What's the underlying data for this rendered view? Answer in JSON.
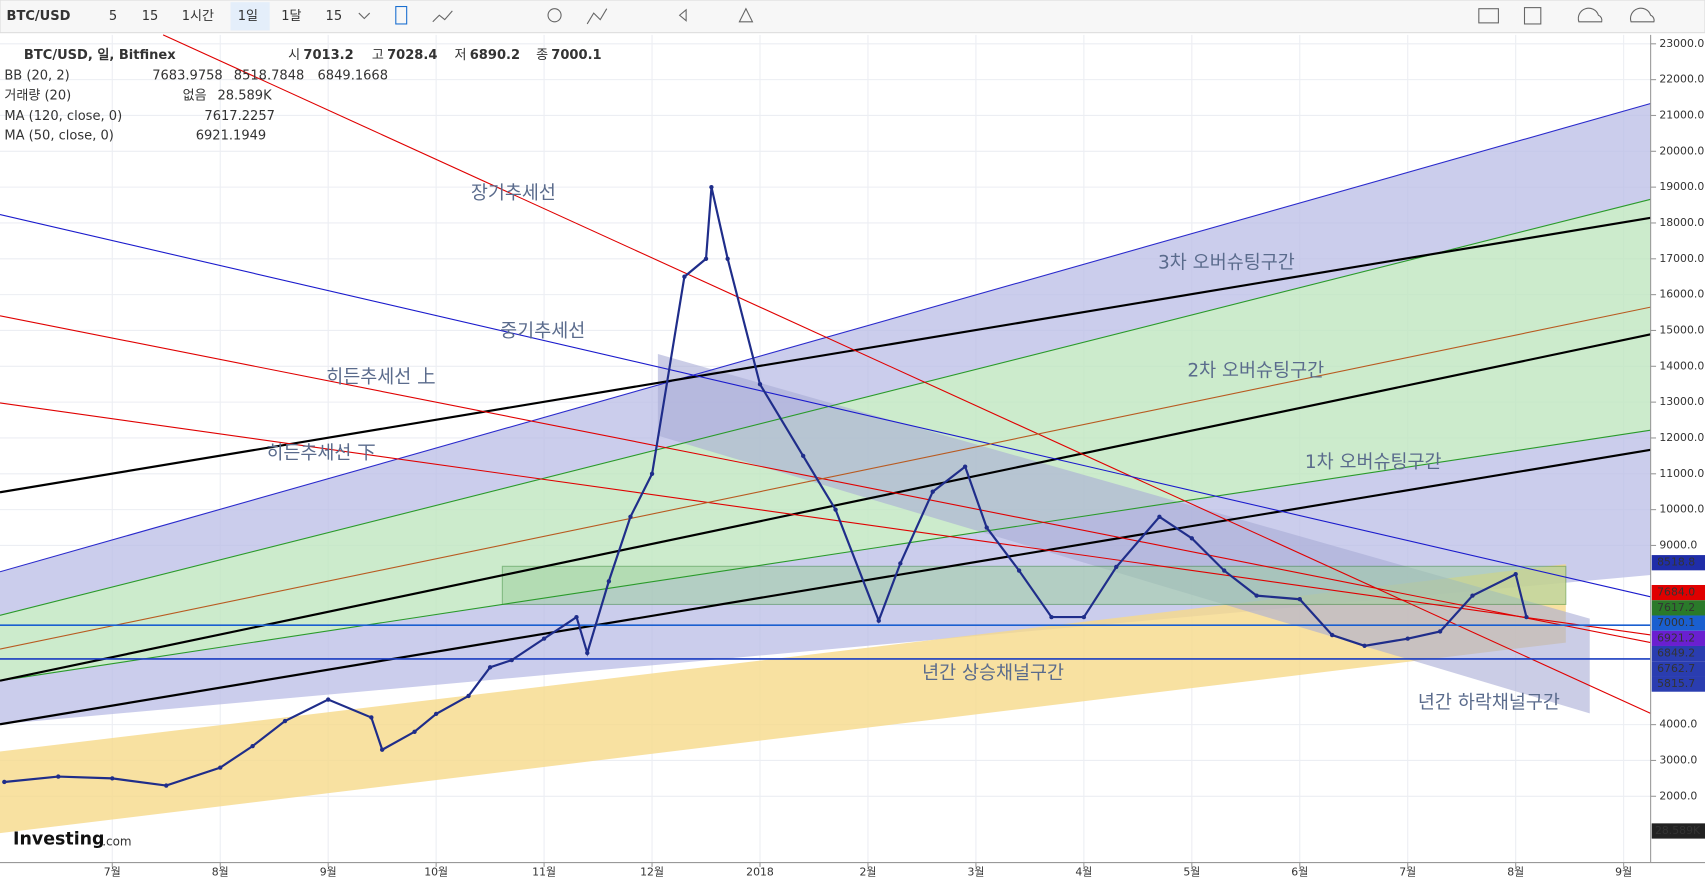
{
  "toolbar": {
    "symbol": "BTC/USD",
    "intervals": [
      "5",
      "15",
      "1시간",
      "1일",
      "1달",
      "15"
    ]
  },
  "legend": {
    "title": "BTC/USD, 일, Bitfinex",
    "ohlc": [
      {
        "label": "시",
        "value": "7013.2"
      },
      {
        "label": "고",
        "value": "7028.4"
      },
      {
        "label": "저",
        "value": "6890.2"
      },
      {
        "label": "종",
        "value": "7000.1"
      }
    ],
    "indicators": [
      {
        "name": "BB (20, 2)",
        "values": [
          {
            "text": "7683.9758",
            "color": "#e00000"
          },
          {
            "text": "8518.7848",
            "color": "#1a1acc"
          },
          {
            "text": "6849.1668",
            "color": "#1a1acc"
          }
        ]
      },
      {
        "name": "거래량 (20)",
        "values": [
          {
            "text": "없음",
            "color": "#1a1acc"
          },
          {
            "text": "28.589K",
            "color": "#222222"
          }
        ]
      },
      {
        "name": "MA (120, close, 0)",
        "values": [
          {
            "text": "7617.2257",
            "color": "#2a7a2a"
          }
        ]
      },
      {
        "name": "MA (50, close, 0)",
        "values": [
          {
            "text": "6921.1949",
            "color": "#6a1fd0"
          }
        ]
      }
    ]
  },
  "annotations": [
    "장기추세선",
    "중기추세선",
    "히든추세선 上",
    "히든추세선 下",
    "3차 오버슈팅구간",
    "2차 오버슈팅구간",
    "1차 오버슈팅구간",
    "년간 상승채널구간",
    "년간 하락채널구간"
  ],
  "logo": {
    "brand": "Investing",
    ".com": ".com"
  },
  "volume_badge": "28.589K",
  "chart_data": {
    "type": "line",
    "color": "#1f2d8a",
    "x": [
      5.0,
      5.5,
      6.0,
      6.5,
      7.0,
      7.3,
      7.6,
      8.0,
      8.4,
      8.5,
      8.8,
      9.0,
      9.3,
      9.5,
      9.7,
      10.0,
      10.3,
      10.4,
      10.6,
      10.8,
      11.0,
      11.3,
      11.5,
      11.55,
      11.7,
      12.0,
      12.4,
      12.7,
      13.1,
      13.3,
      13.6,
      13.9,
      14.1,
      14.4,
      14.7,
      15.0,
      15.3,
      15.7,
      16.0,
      16.3,
      16.6,
      17.0,
      17.3,
      17.6,
      18.0,
      18.3,
      18.6,
      19.0,
      19.1
    ],
    "values": [
      2400,
      2550,
      2500,
      2300,
      2800,
      3400,
      4100,
      4700,
      4200,
      3300,
      3800,
      4300,
      4800,
      5600,
      5800,
      6400,
      7000,
      6000,
      8000,
      9800,
      11000,
      16500,
      17000,
      19000,
      17000,
      13500,
      11500,
      10000,
      6900,
      8500,
      10500,
      11200,
      9500,
      8300,
      7000,
      7000,
      8400,
      9800,
      9200,
      8300,
      7600,
      7500,
      6500,
      6200,
      6400,
      6600,
      7600,
      8200,
      7000
    ],
    "xlim": [
      4.96,
      20.25
    ],
    "ylim": [
      150,
      23250
    ],
    "xticks": [
      {
        "value": 6,
        "label": "7월"
      },
      {
        "value": 7,
        "label": "8월"
      },
      {
        "value": 8,
        "label": "9월"
      },
      {
        "value": 9,
        "label": "10월"
      },
      {
        "value": 10,
        "label": "11월"
      },
      {
        "value": 11,
        "label": "12월"
      },
      {
        "value": 12,
        "label": "2018"
      },
      {
        "value": 13,
        "label": "2월"
      },
      {
        "value": 14,
        "label": "3월"
      },
      {
        "value": 15,
        "label": "4월"
      },
      {
        "value": 16,
        "label": "5월"
      },
      {
        "value": 17,
        "label": "6월"
      },
      {
        "value": 18,
        "label": "7월"
      },
      {
        "value": 19,
        "label": "8월"
      },
      {
        "value": 20,
        "label": "9월"
      }
    ],
    "yticks": [
      {
        "value": 23000,
        "label": "23000.0"
      },
      {
        "value": 22000,
        "label": "22000.0"
      },
      {
        "value": 21000,
        "label": "21000.0"
      },
      {
        "value": 20000,
        "label": "20000.0"
      },
      {
        "value": 19000,
        "label": "19000.0"
      },
      {
        "value": 18000,
        "label": "18000.0"
      },
      {
        "value": 17000,
        "label": "17000.0"
      },
      {
        "value": 16000,
        "label": "16000.0"
      },
      {
        "value": 15000,
        "label": "15000.0"
      },
      {
        "value": 14000,
        "label": "14000.0"
      },
      {
        "value": 13000,
        "label": "13000.0"
      },
      {
        "value": 12000,
        "label": "12000.0"
      },
      {
        "value": 11000,
        "label": "11000.0"
      },
      {
        "value": 10000,
        "label": "10000.0"
      },
      {
        "value": 9000,
        "label": "9000.0"
      },
      {
        "value": 4000,
        "label": "4000.0"
      },
      {
        "value": 3000,
        "label": "3000.0"
      },
      {
        "value": 2000,
        "label": "2000.0"
      }
    ],
    "price_badges": [
      {
        "value": 8518.8,
        "label": "8518.8",
        "color": "#1f2da8"
      },
      {
        "value": 7684,
        "label": "7684.0",
        "color": "#e00000"
      },
      {
        "value": 7617.2,
        "label": "7617.2",
        "color": "#2a7a2a"
      },
      {
        "value": 7000.1,
        "label": "7000.1",
        "color": "#1a5fd0"
      },
      {
        "value": 6921.2,
        "label": "6921.2",
        "color": "#6a1fd0"
      },
      {
        "value": 6849.2,
        "label": "6849.2",
        "color": "#2a3db0"
      },
      {
        "value": 6762.7,
        "label": "6762.7",
        "color": "#2a3db0"
      },
      {
        "value": 5815.7,
        "label": "5815.7",
        "color": "#2a3db0"
      }
    ],
    "grid": true
  }
}
